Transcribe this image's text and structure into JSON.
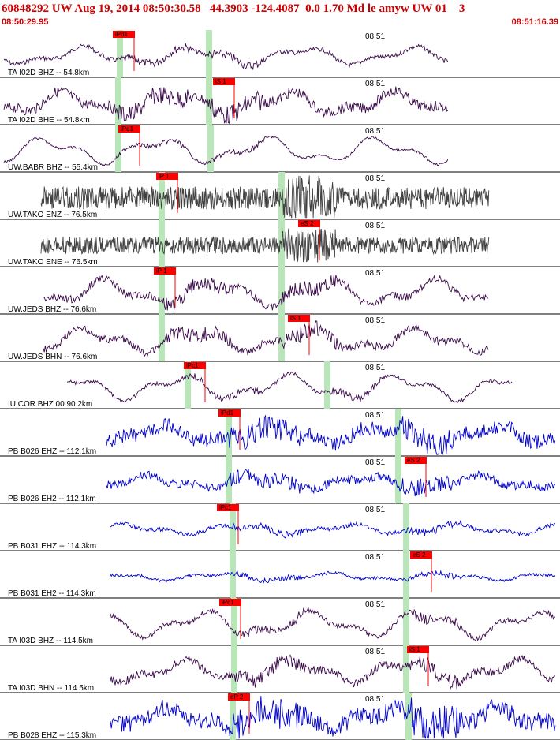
{
  "header": {
    "title": "60848292 UW Aug 19, 2014 08:50:30.58   44.3903 -124.4087  0.0 1.70 Md le amyw UW 01    3",
    "start_time": "08:50:29.95",
    "end_time": "08:51:16.39"
  },
  "colors": {
    "header_text": "#cc0000",
    "trace_dark": "#3a0a4a",
    "trace_grey": "#404040",
    "trace_blue": "#0000cc",
    "pick_box": "#ff0000",
    "pick_bar": "#b8e6b8"
  },
  "panels": [
    {
      "label": "TA I02D BHZ -- 54.8km",
      "time": "08:51",
      "pick": "iPd1",
      "color": "dark"
    },
    {
      "label": "TA I02D BHE -- 54.8km",
      "time": "08:51",
      "pick": "iS 1",
      "color": "dark"
    },
    {
      "label": "UW.BABR BHZ -- 55.4km",
      "time": "08:51",
      "pick": "iPd1",
      "color": "dark"
    },
    {
      "label": "UW.TAKO ENZ -- 76.5km",
      "time": "08:51",
      "pick": "iP 1",
      "color": "grey"
    },
    {
      "label": "UW.TAKO ENE -- 76.5km",
      "time": "08:51",
      "pick": "eS 2",
      "color": "grey"
    },
    {
      "label": "UW.JEDS BHZ -- 76.6km",
      "time": "08:51",
      "pick": "iP 1",
      "color": "dark"
    },
    {
      "label": "UW.JEDS BHN -- 76.6km",
      "time": "08:51",
      "pick": "iS 1",
      "color": "dark"
    },
    {
      "label": "IU COR BHZ 00 90.2km",
      "time": "08:51",
      "pick": "iPc1",
      "color": "dark"
    },
    {
      "label": "PB B026 EHZ -- 112.1km",
      "time": "08:51",
      "pick": "iPd1",
      "color": "blue"
    },
    {
      "label": "PB B026 EH2 -- 112.1km",
      "time": "08:51",
      "pick": "eS 2",
      "color": "blue"
    },
    {
      "label": "PB B031 EHZ -- 114.3km",
      "time": "08:51",
      "pick": "iPc1",
      "color": "blue"
    },
    {
      "label": "PB B031 EH2 -- 114.3km",
      "time": "08:51",
      "pick": "eS 2",
      "color": "blue"
    },
    {
      "label": "TA I03D BHZ -- 114.5km",
      "time": "08:51",
      "pick": "iPc1",
      "color": "dark"
    },
    {
      "label": "TA I03D BHN -- 114.5km",
      "time": "08:51",
      "pick": "iS 1",
      "color": "dark"
    },
    {
      "label": "PB B028 EHZ -- 115.3km",
      "time": "08:51",
      "pick": "eP 2",
      "color": "blue"
    }
  ]
}
